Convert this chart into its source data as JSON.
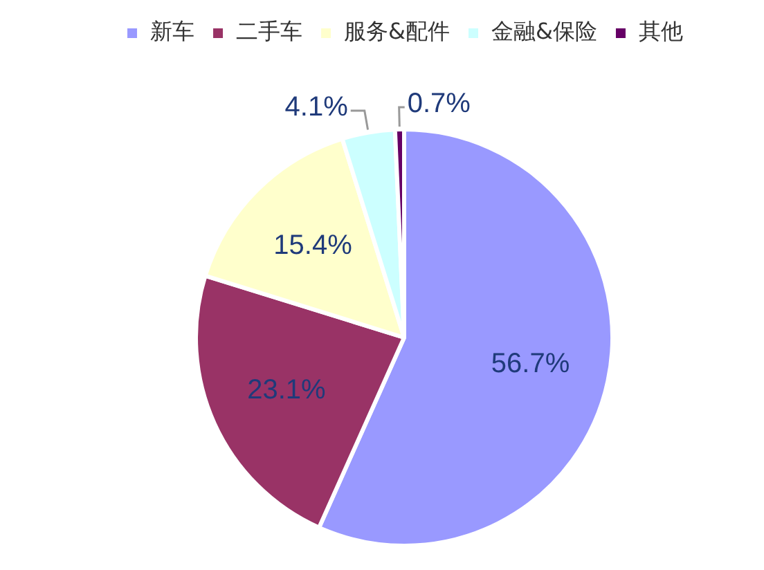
{
  "chart_data": {
    "type": "pie",
    "categories": [
      "新车",
      "二手车",
      "服务&配件",
      "金融&保险",
      "其他"
    ],
    "values": [
      56.7,
      23.1,
      15.4,
      4.1,
      0.7
    ],
    "colors": [
      "#9999ff",
      "#993366",
      "#ffffcc",
      "#ccffff",
      "#660066"
    ],
    "value_labels": [
      "56.7%",
      "23.1%",
      "15.4%",
      "4.1%",
      "0.7%"
    ],
    "legend": "top"
  }
}
